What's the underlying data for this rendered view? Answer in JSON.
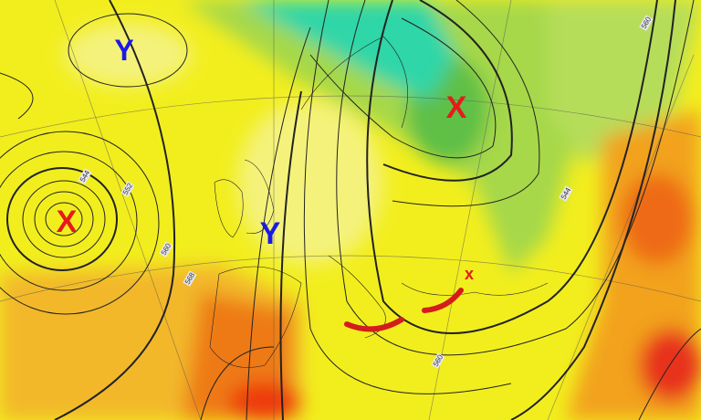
{
  "markers": [
    {
      "symbol": "Y",
      "color": "#1a1ae6",
      "kind": "high"
    },
    {
      "symbol": "X",
      "color": "#e61a1a",
      "kind": "low"
    },
    {
      "symbol": "Y",
      "color": "#1a1ae6",
      "kind": "high"
    },
    {
      "symbol": "X",
      "color": "#e61a1a",
      "kind": "low"
    },
    {
      "symbol": "x",
      "color": "#e61a1a",
      "kind": "low"
    }
  ],
  "contour_labels": [
    "544",
    "552",
    "560",
    "568",
    "560",
    "544",
    "560"
  ],
  "colors": {
    "yellow": "#f2ee1e",
    "pale_yellow": "#f4f27a",
    "orange": "#f2a21e",
    "red_orange": "#ee5a14",
    "green": "#a6d84a",
    "dark_green": "#5fbf46",
    "teal": "#2ed6a8",
    "arc": "#d41c1c"
  }
}
